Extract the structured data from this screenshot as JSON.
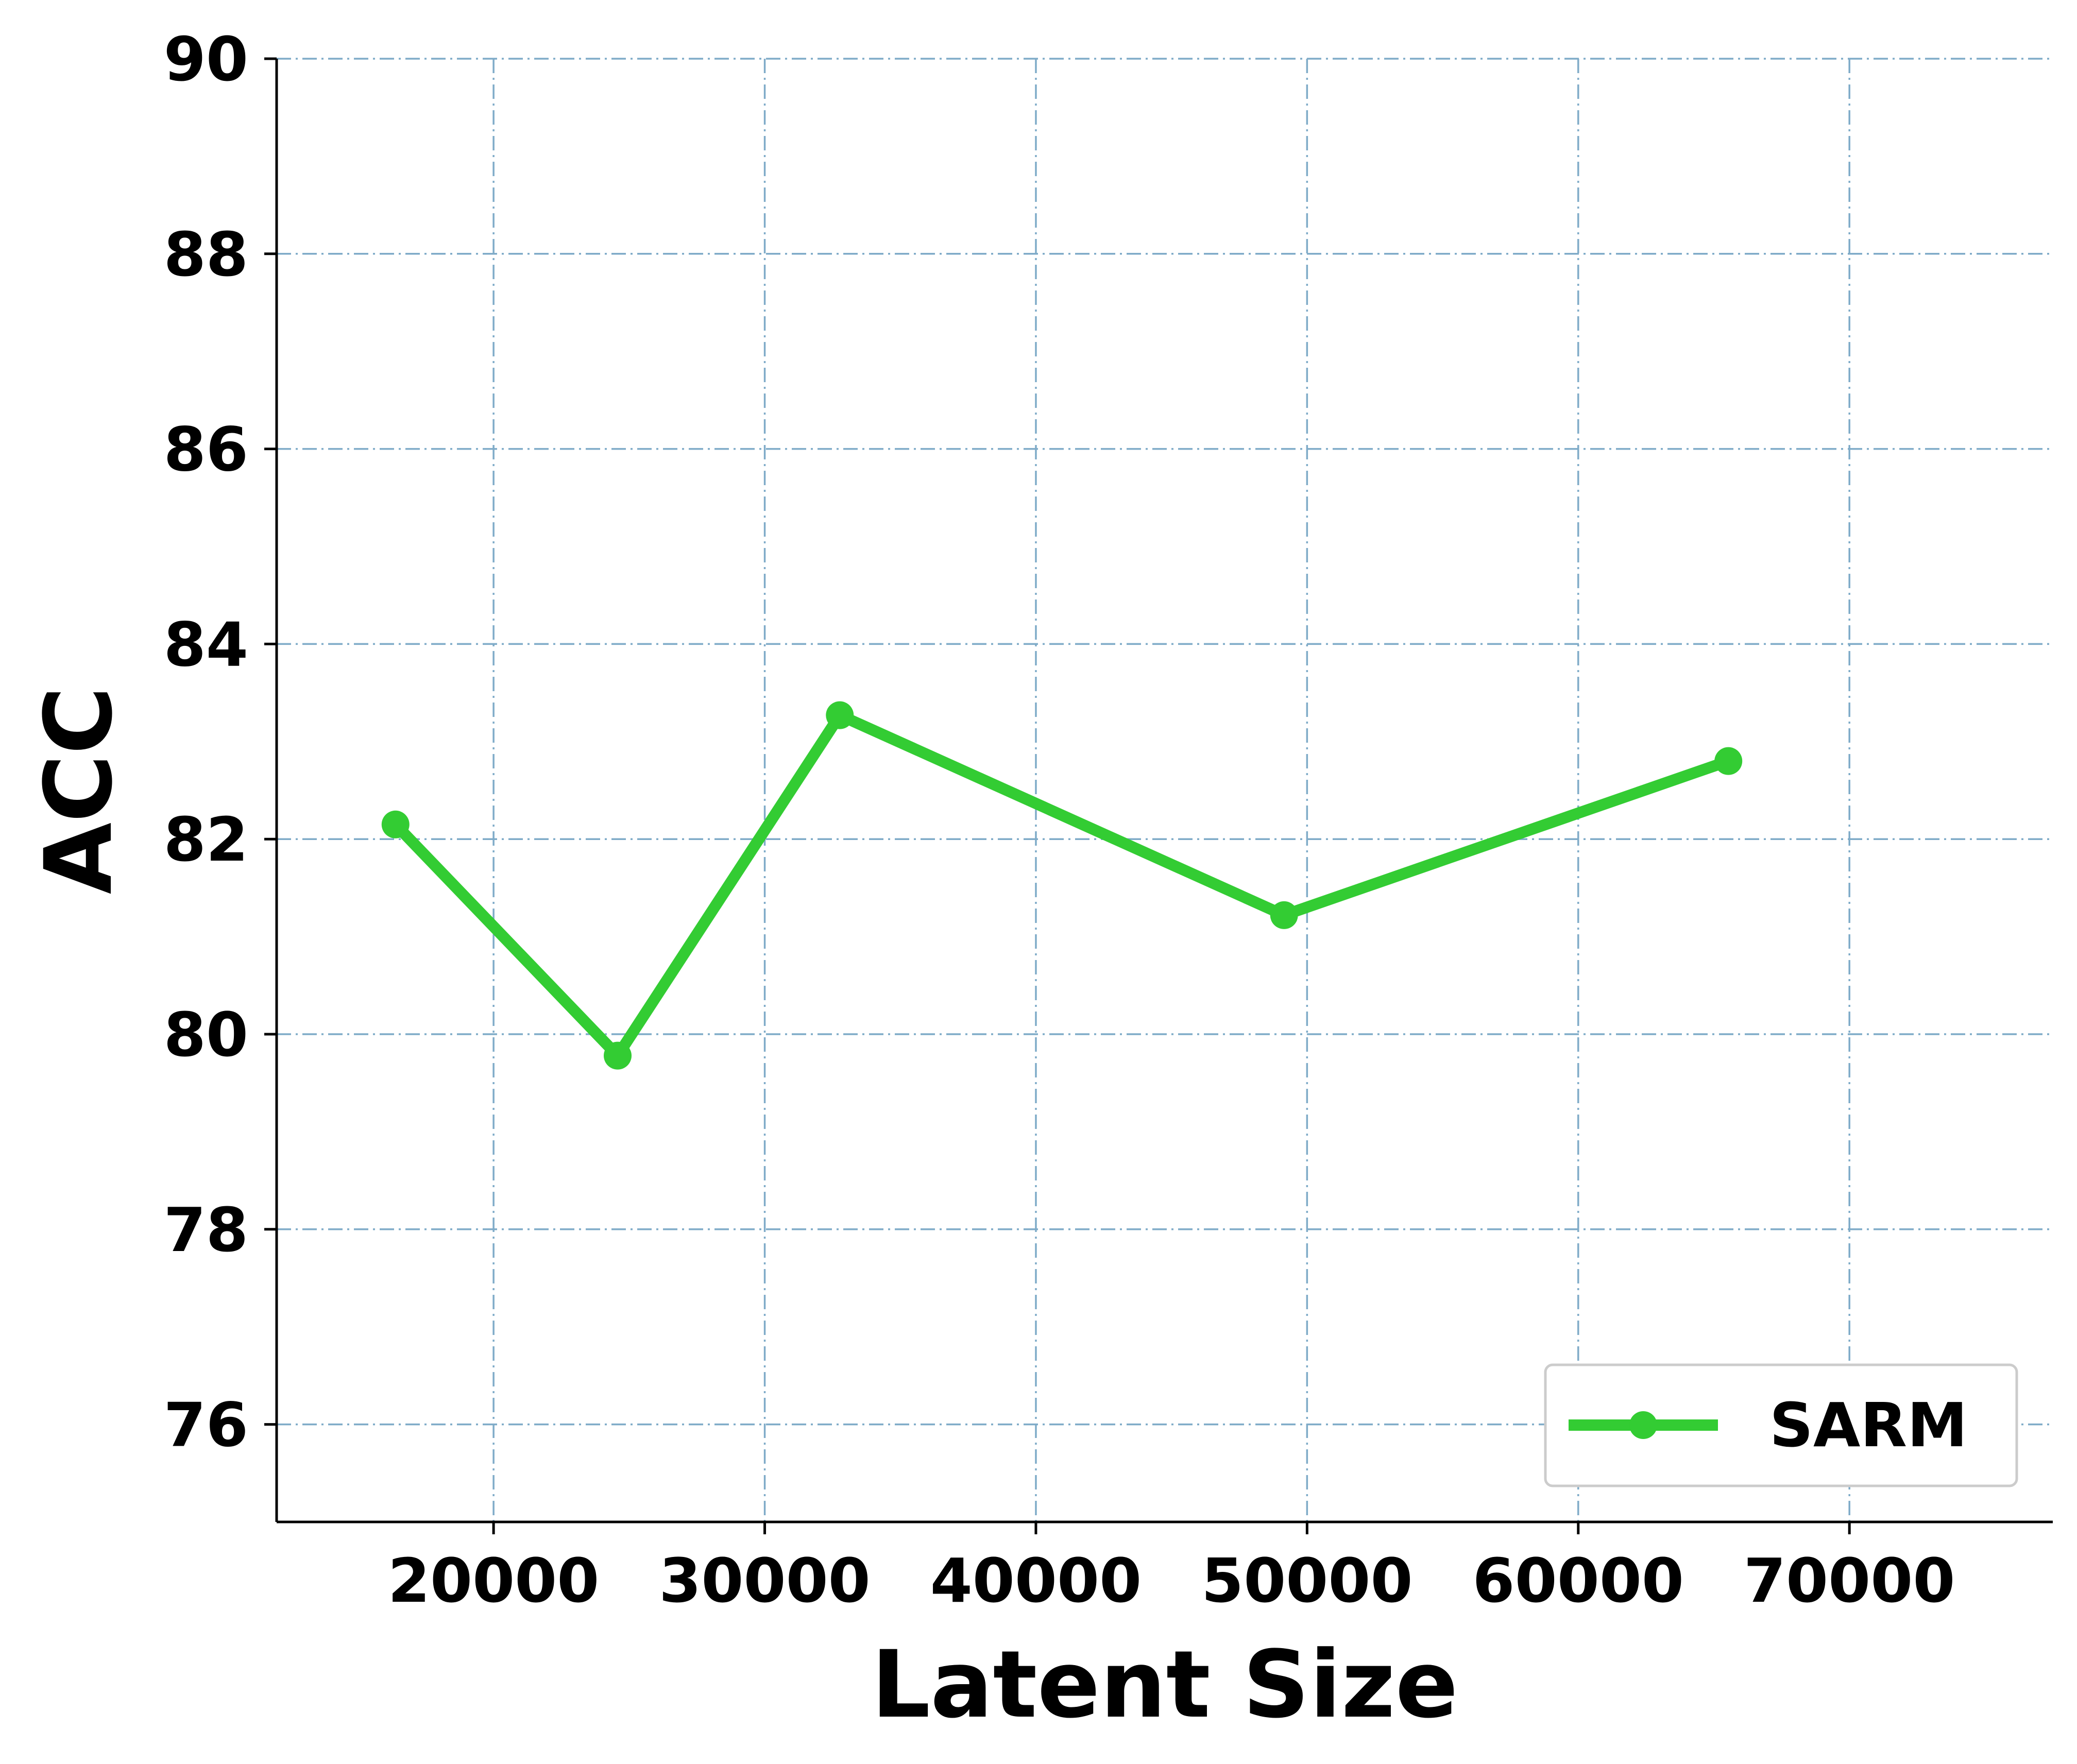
{
  "chart_data": {
    "type": "line",
    "xlabel": "Latent Size",
    "ylabel": "ACC",
    "xlim": [
      12000,
      77500
    ],
    "ylim": [
      75,
      90
    ],
    "x_ticks": [
      20000,
      30000,
      40000,
      50000,
      60000,
      70000
    ],
    "y_ticks": [
      76,
      78,
      80,
      82,
      84,
      86,
      88,
      90
    ],
    "grid": true,
    "legend_position": "lower-right",
    "series": [
      {
        "name": "SARM",
        "color": "#33cc33",
        "marker": "circle",
        "x": [
          16384,
          24576,
          32768,
          49152,
          65536
        ],
        "y": [
          82.15,
          79.78,
          83.27,
          81.22,
          82.8
        ]
      }
    ]
  }
}
